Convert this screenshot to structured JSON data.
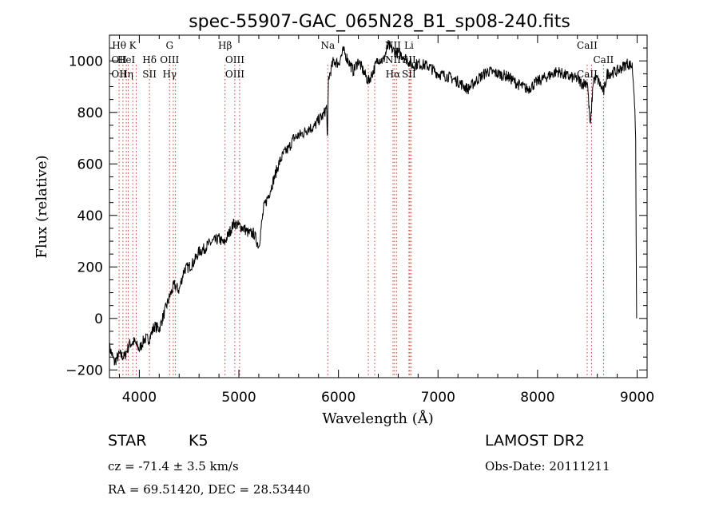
{
  "chart_data": {
    "type": "line",
    "title": "spec-55907-GAC_065N28_B1_sp08-240.fits",
    "xlabel": "Wavelength (Å)",
    "ylabel": "Flux (relative)",
    "xlim": [
      3700,
      9100
    ],
    "ylim": [
      -230,
      1100
    ],
    "xticks": [
      4000,
      5000,
      6000,
      7000,
      8000,
      9000
    ],
    "yticks": [
      -200,
      0,
      200,
      400,
      600,
      800,
      1000
    ],
    "grid": false,
    "series": [
      {
        "x": [
          3700,
          3750,
          3800,
          3850,
          3900,
          3950,
          4000,
          4050,
          4100,
          4150,
          4200,
          4250,
          4300,
          4350,
          4400,
          4450,
          4500,
          4550,
          4600,
          4650,
          4700,
          4750,
          4800,
          4850,
          4900,
          4950,
          5000,
          5050,
          5100,
          5150,
          5200,
          5250,
          5300,
          5350,
          5400,
          5450,
          5500,
          5550,
          5600,
          5650,
          5700,
          5750,
          5800,
          5850,
          5880,
          5890,
          5900,
          5950,
          6000,
          6050,
          6100,
          6150,
          6200,
          6250,
          6300,
          6350,
          6400,
          6450,
          6500,
          6550,
          6600,
          6650,
          6700,
          6750,
          6800,
          6900,
          7000,
          7100,
          7200,
          7300,
          7400,
          7500,
          7600,
          7700,
          7800,
          7900,
          8000,
          8100,
          8200,
          8300,
          8400,
          8450,
          8500,
          8530,
          8560,
          8600,
          8650,
          8665,
          8700,
          8800,
          8900,
          8950,
          8970,
          8985,
          8990,
          8995
        ],
        "values": [
          -110,
          -170,
          -140,
          -150,
          -100,
          -90,
          -120,
          -80,
          -80,
          -30,
          -40,
          20,
          80,
          130,
          110,
          190,
          200,
          220,
          260,
          270,
          290,
          300,
          310,
          290,
          330,
          370,
          360,
          350,
          330,
          330,
          280,
          430,
          480,
          540,
          600,
          640,
          660,
          700,
          710,
          720,
          740,
          740,
          770,
          790,
          820,
          700,
          930,
          1000,
          990,
          1040,
          1000,
          960,
          1000,
          960,
          920,
          960,
          1010,
          1000,
          1060,
          1040,
          1030,
          1020,
          1000,
          980,
          990,
          980,
          950,
          940,
          920,
          890,
          930,
          960,
          950,
          940,
          910,
          890,
          920,
          940,
          960,
          940,
          930,
          910,
          920,
          740,
          930,
          930,
          890,
          880,
          950,
          960,
          990,
          980,
          880,
          700,
          300,
          0
        ]
      }
    ],
    "line_labels": [
      {
        "x": 3797,
        "lines": [
          "Hθ",
          "OII",
          "OII"
        ]
      },
      {
        "x": 3835,
        "lines": [
          "",
          "",
          ""
        ]
      },
      {
        "x": 3869,
        "lines": [
          "",
          "HeI",
          "Hη"
        ]
      },
      {
        "x": 3889,
        "lines": [
          "",
          "",
          ""
        ]
      },
      {
        "x": 3934,
        "lines": [
          "K",
          "",
          ""
        ]
      },
      {
        "x": 3969,
        "lines": [
          "",
          "",
          ""
        ]
      },
      {
        "x": 4102,
        "lines": [
          "",
          "Hδ",
          "SII"
        ]
      },
      {
        "x": 4304,
        "lines": [
          "G",
          "OIII",
          "Hγ"
        ]
      },
      {
        "x": 4341,
        "lines": [
          "",
          "",
          ""
        ]
      },
      {
        "x": 4363,
        "lines": [
          "",
          "",
          ""
        ]
      },
      {
        "x": 4861,
        "lines": [
          "Hβ",
          "",
          ""
        ]
      },
      {
        "x": 4959,
        "lines": [
          "",
          "OIII",
          "OIII"
        ]
      },
      {
        "x": 5007,
        "lines": [
          "",
          "",
          ""
        ]
      },
      {
        "x": 5893,
        "lines": [
          "Na",
          "",
          ""
        ]
      },
      {
        "x": 6300,
        "lines": [
          "",
          "",
          ""
        ]
      },
      {
        "x": 6364,
        "lines": [
          "",
          "",
          ""
        ]
      },
      {
        "x": 6548,
        "lines": [
          "NII",
          "NII",
          "Hα"
        ]
      },
      {
        "x": 6563,
        "lines": [
          "",
          "",
          ""
        ]
      },
      {
        "x": 6583,
        "lines": [
          "",
          "",
          ""
        ]
      },
      {
        "x": 6708,
        "lines": [
          "Li",
          "SII",
          "SII"
        ]
      },
      {
        "x": 6717,
        "lines": [
          "",
          "",
          ""
        ]
      },
      {
        "x": 6731,
        "lines": [
          "",
          "",
          ""
        ]
      },
      {
        "x": 8498,
        "lines": [
          "CaII",
          "",
          "CaII"
        ]
      },
      {
        "x": 8542,
        "lines": [
          "",
          "",
          ""
        ]
      },
      {
        "x": 8662,
        "lines": [
          "",
          "CaII",
          ""
        ]
      }
    ]
  },
  "info": {
    "object": "STAR",
    "subclass": "K5",
    "survey": "LAMOST DR2",
    "redshift": "cz = -71.4 ± 3.5 km/s",
    "obs_date": "Obs-Date: 20111211",
    "coords": "RA = 69.51420, DEC = 28.53440"
  }
}
